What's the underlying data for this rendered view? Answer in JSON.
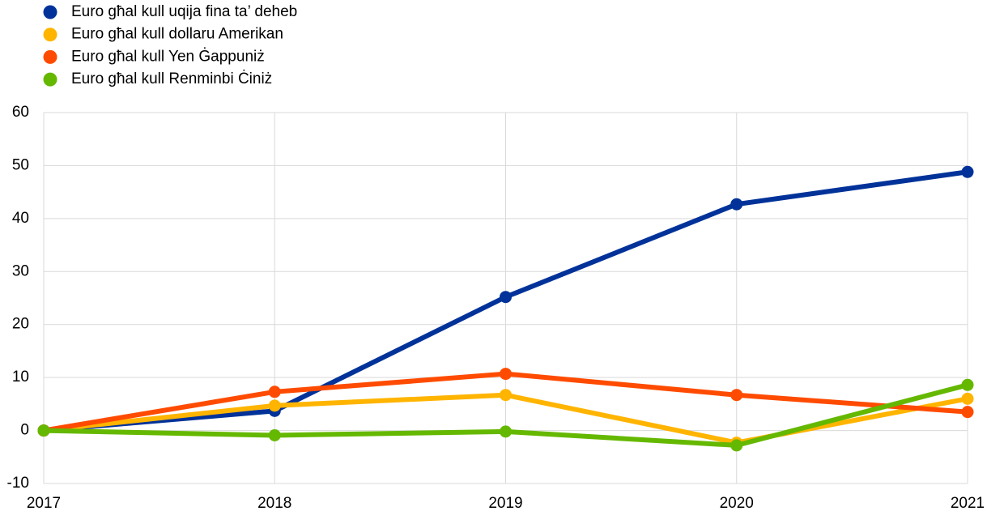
{
  "chart_data": {
    "type": "line",
    "x": [
      2017,
      2018,
      2019,
      2020,
      2021
    ],
    "xlim": [
      2017,
      2021
    ],
    "xticks": [
      2017,
      2018,
      2019,
      2020,
      2021
    ],
    "ylim": [
      -10,
      60
    ],
    "yticks": [
      -10,
      0,
      10,
      20,
      30,
      40,
      50,
      60
    ],
    "grid": true,
    "legend": "top-left",
    "series": [
      {
        "name": "Euro għal kull uqija fina ta’ deheb",
        "color": "#003299",
        "values": [
          0,
          3.7,
          25.2,
          42.7,
          48.8
        ]
      },
      {
        "name": "Euro għal kull dollaru Amerikan",
        "color": "#ffb400",
        "values": [
          0,
          4.7,
          6.7,
          -2.3,
          6.0
        ]
      },
      {
        "name": "Euro għal kull Yen Ġappuniż",
        "color": "#ff4b00",
        "values": [
          0,
          7.3,
          10.7,
          6.7,
          3.5
        ]
      },
      {
        "name": "Euro għal kull Renminbi Ċiniż",
        "color": "#65b800",
        "values": [
          0,
          -0.9,
          -0.2,
          -2.8,
          8.6
        ]
      }
    ]
  }
}
